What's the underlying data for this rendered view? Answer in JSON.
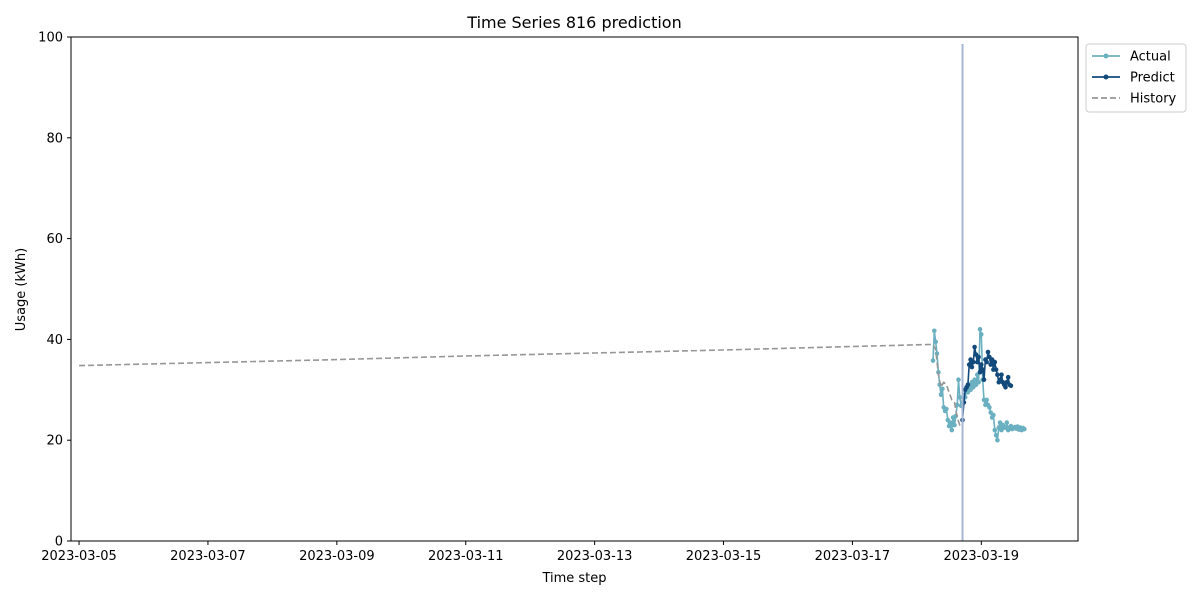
{
  "chart_data": {
    "type": "line",
    "title": "Time Series 816 prediction",
    "xlabel": "Time step",
    "ylabel": "Usage (kWh)",
    "ylim": [
      0,
      100
    ],
    "xlim": [
      "2023-03-04T21:00",
      "2023-03-20T12:00"
    ],
    "x_ticks": [
      "2023-03-05",
      "2023-03-07",
      "2023-03-09",
      "2023-03-11",
      "2023-03-13",
      "2023-03-15",
      "2023-03-17",
      "2023-03-19"
    ],
    "y_ticks": [
      0,
      20,
      40,
      60,
      80,
      100
    ],
    "grid": false,
    "legend_placement": "outside-top-right",
    "forecast_start": "2023-03-18T17:00",
    "colors": {
      "actual": "#6bb0c0",
      "predict": "#134a7c",
      "history": "#969696",
      "vline": "#a6b6d4"
    },
    "series": [
      {
        "name": "Actual",
        "style": "solid-marker",
        "color": "#6bb0c0",
        "x": [
          "2023-03-18T06:00",
          "2023-03-18T06:30",
          "2023-03-18T07:00",
          "2023-03-18T07:30",
          "2023-03-18T08:00",
          "2023-03-18T08:30",
          "2023-03-18T09:00",
          "2023-03-18T09:30",
          "2023-03-18T10:00",
          "2023-03-18T10:30",
          "2023-03-18T11:00",
          "2023-03-18T11:30",
          "2023-03-18T12:00",
          "2023-03-18T12:30",
          "2023-03-18T13:00",
          "2023-03-18T13:30",
          "2023-03-18T14:00",
          "2023-03-18T14:30",
          "2023-03-18T15:00",
          "2023-03-18T15:30",
          "2023-03-18T16:00",
          "2023-03-18T16:30",
          "2023-03-18T17:00",
          "2023-03-18T17:30",
          "2023-03-18T18:00",
          "2023-03-18T18:30",
          "2023-03-18T19:00",
          "2023-03-18T19:30",
          "2023-03-18T20:00",
          "2023-03-18T20:30",
          "2023-03-18T21:00",
          "2023-03-18T21:30",
          "2023-03-18T22:00",
          "2023-03-18T22:30",
          "2023-03-18T23:00",
          "2023-03-18T23:30",
          "2023-03-19T00:00",
          "2023-03-19T00:30",
          "2023-03-19T01:00",
          "2023-03-19T01:30",
          "2023-03-19T02:00",
          "2023-03-19T02:30",
          "2023-03-19T03:00",
          "2023-03-19T03:30",
          "2023-03-19T04:00",
          "2023-03-19T04:30",
          "2023-03-19T05:00",
          "2023-03-19T05:30",
          "2023-03-19T06:00",
          "2023-03-19T06:30",
          "2023-03-19T07:00",
          "2023-03-19T07:30",
          "2023-03-19T08:00",
          "2023-03-19T08:30",
          "2023-03-19T09:00",
          "2023-03-19T09:30",
          "2023-03-19T10:00",
          "2023-03-19T10:30",
          "2023-03-19T11:00",
          "2023-03-19T11:30",
          "2023-03-19T12:00",
          "2023-03-19T12:30",
          "2023-03-19T13:00",
          "2023-03-19T13:30",
          "2023-03-19T14:00",
          "2023-03-19T14:30",
          "2023-03-19T15:00",
          "2023-03-19T15:30",
          "2023-03-19T16:00"
        ],
        "values": [
          35.8,
          41.7,
          39.5,
          37.2,
          33.5,
          31.0,
          29.0,
          30.2,
          26.5,
          25.8,
          26.2,
          24.0,
          22.8,
          23.5,
          22.0,
          24.5,
          23.0,
          24.8,
          27.0,
          32.0,
          28.5,
          26.8,
          27.5,
          29.0,
          28.5,
          30.5,
          29.5,
          31.0,
          30.0,
          31.5,
          30.5,
          32.0,
          31.0,
          33.0,
          31.5,
          42.0,
          41.0,
          32.0,
          28.0,
          27.0,
          28.0,
          27.0,
          26.5,
          25.5,
          24.5,
          25.0,
          22.0,
          21.0,
          20.0,
          22.5,
          23.5,
          22.0,
          23.0,
          22.5,
          22.5,
          23.5,
          22.0,
          22.5,
          22.8,
          22.2,
          22.4,
          22.6,
          22.3,
          22.7,
          22.1,
          22.5,
          22.0,
          22.4,
          22.2
        ]
      },
      {
        "name": "Predict",
        "style": "solid-marker",
        "color": "#134a7c",
        "x": [
          "2023-03-18T17:00",
          "2023-03-18T17:30",
          "2023-03-18T18:00",
          "2023-03-18T18:30",
          "2023-03-18T19:00",
          "2023-03-18T19:30",
          "2023-03-18T20:00",
          "2023-03-18T20:30",
          "2023-03-18T21:00",
          "2023-03-18T21:30",
          "2023-03-18T22:00",
          "2023-03-18T22:30",
          "2023-03-18T23:00",
          "2023-03-18T23:30",
          "2023-03-19T00:00",
          "2023-03-19T00:30",
          "2023-03-19T01:00",
          "2023-03-19T01:30",
          "2023-03-19T02:00",
          "2023-03-19T02:30",
          "2023-03-19T03:00",
          "2023-03-19T03:30",
          "2023-03-19T04:00",
          "2023-03-19T04:30",
          "2023-03-19T05:00",
          "2023-03-19T05:30",
          "2023-03-19T06:00",
          "2023-03-19T06:30",
          "2023-03-19T07:00",
          "2023-03-19T07:30",
          "2023-03-19T08:00",
          "2023-03-19T08:30",
          "2023-03-19T09:00",
          "2023-03-19T09:30",
          "2023-03-19T10:00",
          "2023-03-19T10:30",
          "2023-03-19T11:00"
        ],
        "values": [
          24.0,
          27.5,
          30.0,
          30.5,
          31.0,
          35.0,
          36.0,
          34.5,
          35.5,
          38.5,
          37.0,
          35.5,
          36.5,
          33.5,
          35.0,
          34.0,
          32.0,
          36.0,
          35.5,
          37.5,
          36.5,
          35.0,
          36.0,
          34.0,
          35.5,
          34.0,
          33.0,
          31.5,
          32.0,
          33.0,
          31.5,
          31.0,
          30.5,
          31.5,
          32.5,
          31.0,
          30.8
        ]
      },
      {
        "name": "History",
        "style": "dashed",
        "color": "#969696",
        "x": [
          "2023-03-05T00:00",
          "2023-03-07T00:00",
          "2023-03-09T00:00",
          "2023-03-11T00:00",
          "2023-03-13T00:00",
          "2023-03-15T00:00",
          "2023-03-17T00:00",
          "2023-03-18T06:00",
          "2023-03-18T07:00",
          "2023-03-18T08:00",
          "2023-03-18T09:00",
          "2023-03-18T10:00",
          "2023-03-18T11:00",
          "2023-03-18T12:00",
          "2023-03-18T13:00",
          "2023-03-18T14:00",
          "2023-03-18T15:00",
          "2023-03-18T16:00",
          "2023-03-18T17:00"
        ],
        "values": [
          34.8,
          35.4,
          36.0,
          36.7,
          37.3,
          37.9,
          38.6,
          39.0,
          38.0,
          33.0,
          30.5,
          31.5,
          31.0,
          29.5,
          28.0,
          27.5,
          24.5,
          23.0,
          23.5
        ]
      }
    ]
  }
}
